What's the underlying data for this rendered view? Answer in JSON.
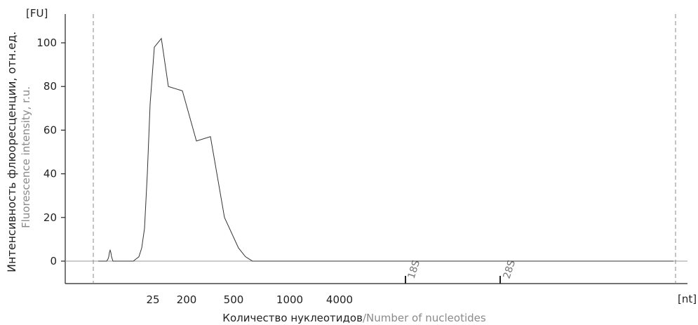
{
  "chart_data": {
    "type": "line",
    "y_unit": "[FU]",
    "x_unit": "[nt]",
    "ylabel_ru": "Интенсивность флюоресценции, отн.ед.",
    "ylabel_en": "Fluorescence intensity, r.u.",
    "xlabel_ru": "Количество нуклеотидов",
    "xlabel_sep": "/",
    "xlabel_en": "Number of nucleotides",
    "ylim": [
      -10,
      110
    ],
    "y_ticks": [
      0,
      20,
      40,
      60,
      80,
      100
    ],
    "x_tick_labels": [
      "25",
      "200",
      "500",
      "1000",
      "4000"
    ],
    "markers": [
      "18S",
      "28S"
    ],
    "grid": false,
    "series": [
      {
        "x": [
          0,
          4,
          8,
          12,
          14,
          15,
          16,
          17,
          18,
          19,
          20,
          21,
          22,
          23,
          24,
          25,
          26,
          27,
          28,
          29,
          30,
          31,
          32,
          33,
          34,
          35,
          36,
          37,
          38,
          39,
          40,
          41,
          42,
          43,
          44,
          45,
          46,
          48,
          50,
          54,
          58,
          62,
          66,
          70,
          74,
          80,
          90,
          100,
          120,
          140,
          160,
          180,
          200,
          210,
          215,
          220,
          230,
          240,
          260,
          280,
          300,
          320,
          340,
          360,
          365,
          370,
          400,
          430,
          460,
          465,
          470,
          480,
          500,
          520,
          560,
          580,
          585,
          590,
          600,
          640,
          660,
          665,
          670,
          680,
          700,
          720,
          740,
          745,
          750,
          760,
          770,
          780,
          790,
          800,
          805,
          810,
          820
        ],
        "y": [
          0,
          0,
          0,
          0,
          1,
          2,
          4,
          5,
          4,
          2,
          1,
          0,
          0,
          0,
          0,
          0,
          0,
          0,
          0,
          0,
          0,
          0,
          0,
          0,
          0,
          0,
          0,
          0,
          0,
          0,
          0,
          0,
          0,
          0,
          0,
          0,
          0,
          0,
          0,
          1,
          2,
          6,
          15,
          40,
          72,
          98,
          102,
          80,
          78,
          55,
          57,
          20,
          6,
          2,
          1,
          0,
          0,
          0,
          0,
          0,
          0,
          0,
          0,
          0,
          0,
          0,
          0,
          0,
          0,
          0,
          0,
          0,
          0,
          0,
          0,
          0,
          0,
          0,
          0,
          0,
          0,
          0,
          0,
          0,
          0,
          0,
          0,
          0,
          0,
          0,
          0,
          0,
          0,
          0,
          0,
          0,
          0
        ]
      }
    ]
  }
}
